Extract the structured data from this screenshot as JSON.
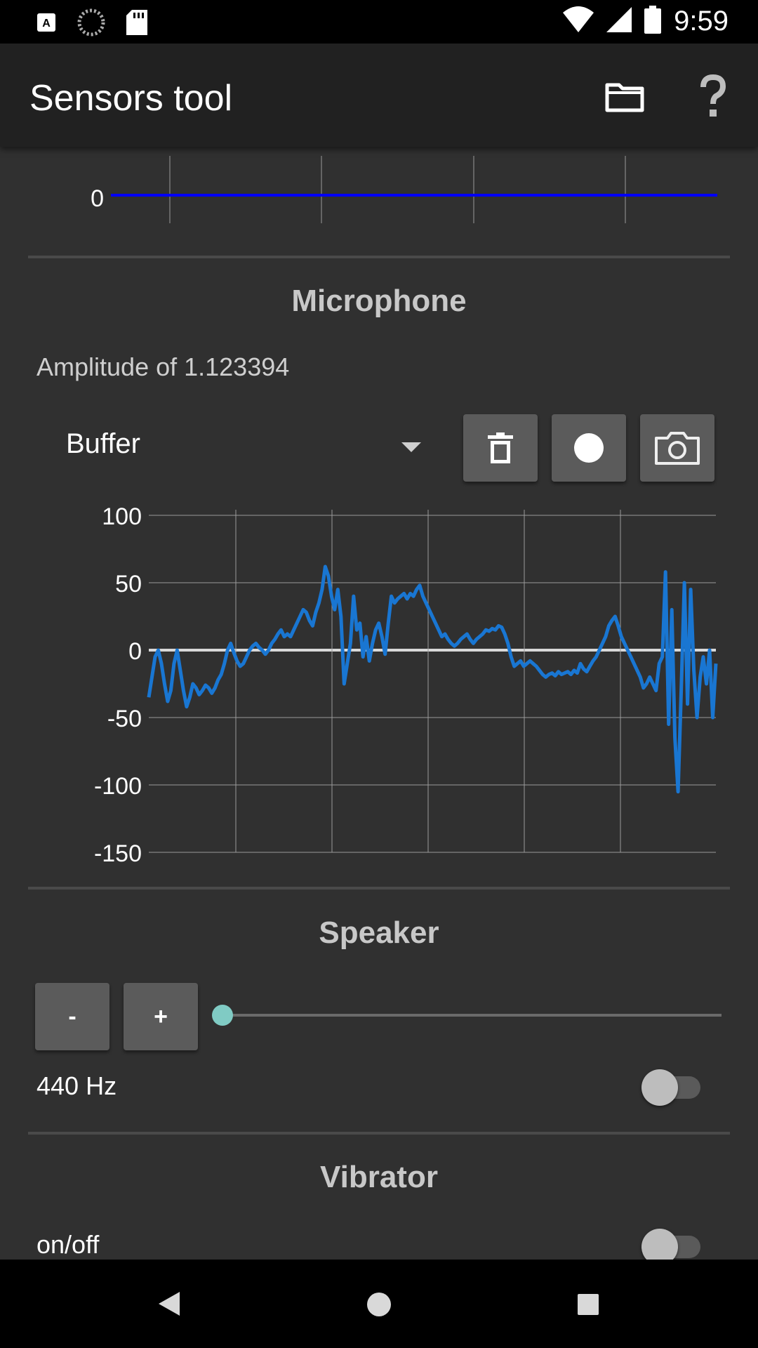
{
  "status_bar": {
    "time": "9:59"
  },
  "app_bar": {
    "title": "Sensors tool"
  },
  "top_chart": {
    "y_tick": "0"
  },
  "microphone": {
    "title": "Microphone",
    "amplitude_text": "Amplitude of 1.123394",
    "spinner_value": "Buffer"
  },
  "chart_data": {
    "type": "line",
    "title": "",
    "xlabel": "",
    "ylabel": "",
    "ylim": [
      -150,
      100
    ],
    "y_ticks": [
      "100",
      "50",
      "0",
      "-50",
      "-100",
      "-150"
    ],
    "series": [
      {
        "color": "#1976d2",
        "values": [
          -35,
          -20,
          -5,
          0,
          -10,
          -25,
          -38,
          -30,
          -10,
          0,
          -15,
          -30,
          -42,
          -35,
          -25,
          -28,
          -33,
          -30,
          -26,
          -28,
          -32,
          -28,
          -22,
          -18,
          -10,
          0,
          5,
          -2,
          -8,
          -12,
          -10,
          -5,
          0,
          3,
          5,
          2,
          0,
          -3,
          0,
          5,
          8,
          12,
          15,
          10,
          12,
          10,
          15,
          20,
          25,
          30,
          28,
          22,
          18,
          28,
          35,
          45,
          62,
          55,
          40,
          30,
          45,
          25,
          -25,
          -10,
          5,
          40,
          15,
          20,
          -5,
          10,
          -8,
          5,
          15,
          20,
          10,
          -3,
          20,
          40,
          35,
          38,
          40,
          42,
          38,
          42,
          40,
          45,
          48,
          40,
          35,
          30,
          25,
          20,
          15,
          10,
          12,
          8,
          5,
          3,
          5,
          8,
          10,
          12,
          8,
          5,
          8,
          10,
          12,
          15,
          14,
          16,
          15,
          18,
          17,
          12,
          5,
          -5,
          -12,
          -10,
          -8,
          -12,
          -10,
          -8,
          -10,
          -12,
          -15,
          -18,
          -20,
          -18,
          -17,
          -19,
          -16,
          -18,
          -17,
          -16,
          -18,
          -15,
          -17,
          -10,
          -14,
          -16,
          -12,
          -8,
          -5,
          0,
          5,
          10,
          18,
          22,
          25,
          18,
          10,
          5,
          0,
          -5,
          -10,
          -15,
          -20,
          -28,
          -25,
          -20,
          -25,
          -30,
          -10,
          -5,
          58,
          -55,
          30,
          -65,
          -105,
          -30,
          50,
          -40,
          45,
          -15,
          -50,
          -20,
          -5,
          -25,
          0,
          -50,
          -10
        ]
      }
    ]
  },
  "speaker": {
    "title": "Speaker",
    "minus_label": "-",
    "plus_label": "+",
    "slider_value": 0,
    "frequency_label": "440 Hz",
    "toggle_on": false
  },
  "vibrator": {
    "title": "Vibrator",
    "onoff_label": "on/off",
    "toggle_on": false
  },
  "colors": {
    "background": "#303030",
    "app_bar": "#212121",
    "signal_line": "#1976d2",
    "top_line": "#0000ff",
    "slider_accent": "#80cbc4"
  }
}
